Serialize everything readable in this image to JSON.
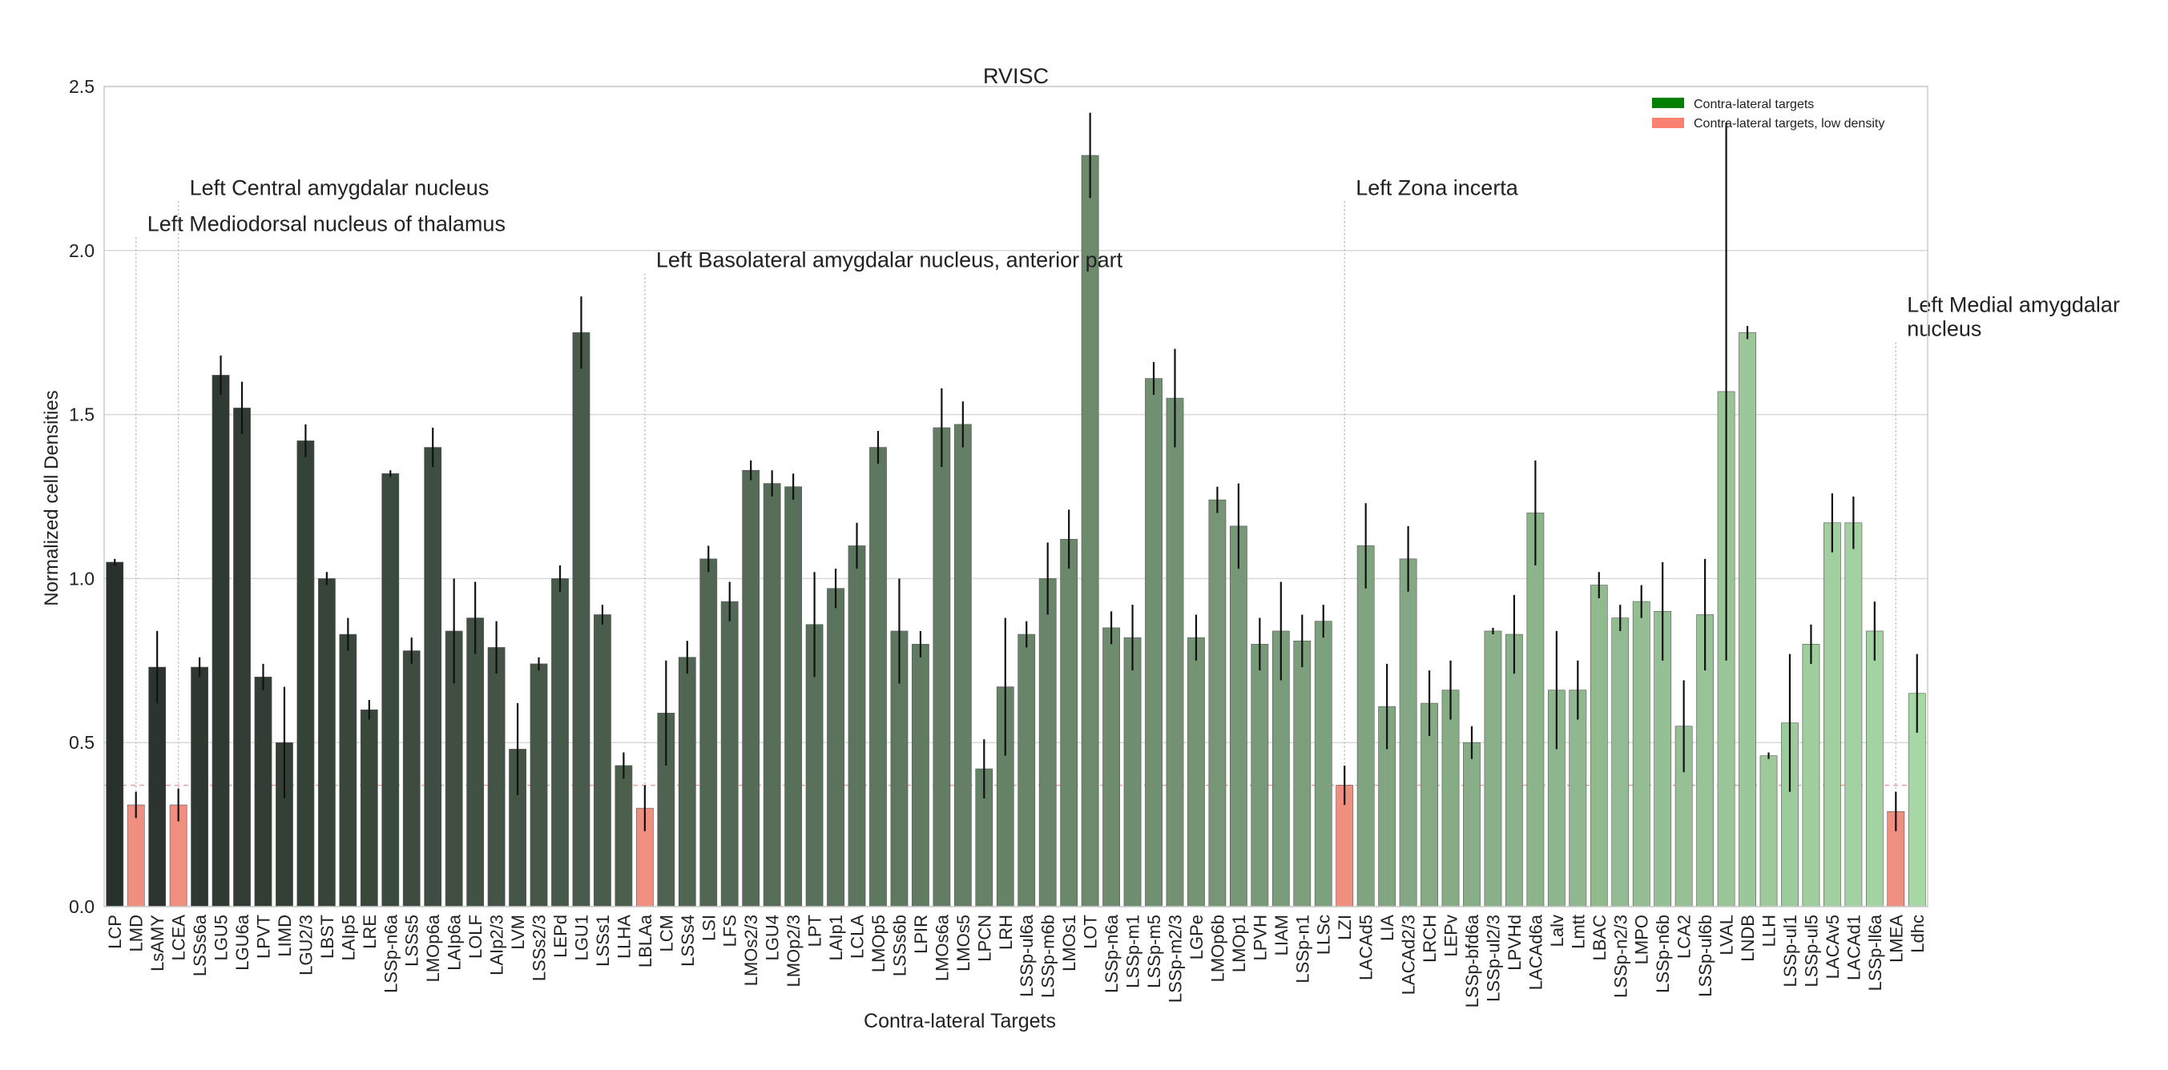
{
  "chart_data": {
    "type": "bar",
    "title": "RVISC",
    "xlabel": "Contra-lateral Targets",
    "ylabel": "Normalized cell Densities",
    "ylim": [
      0,
      2.5
    ],
    "yticks": [
      "0.0",
      "0.5",
      "1.0",
      "1.5",
      "2.0",
      "2.5"
    ],
    "grid": true,
    "threshold": 0.37,
    "legend": {
      "placement": "top-right",
      "entries": [
        {
          "label": "Contra-lateral targets",
          "color": "#008000"
        },
        {
          "label": "Contra-lateral targets, low density",
          "color": "#fa8072"
        }
      ]
    },
    "colors": {
      "gradient_start": "#28302b",
      "gradient_end": "#a7d7a5",
      "low_density": "#ef8f80",
      "error_bar": "#111111",
      "grid": "#d8d8d8",
      "threshold_line": "#e8a0a0"
    },
    "categories": [
      "LCP",
      "LMD",
      "LsAMY",
      "LCEA",
      "LSSs6a",
      "LGU5",
      "LGU6a",
      "LPVT",
      "LIMD",
      "LGU2/3",
      "LBST",
      "LAIp5",
      "LRE",
      "LSSp-n6a",
      "LSSs5",
      "LMOp6a",
      "LAIp6a",
      "LOLF",
      "LAIp2/3",
      "LVM",
      "LSSs2/3",
      "LEPd",
      "LGU1",
      "LSSs1",
      "LLHA",
      "LBLAa",
      "LCM",
      "LSSs4",
      "LSI",
      "LFS",
      "LMOs2/3",
      "LGU4",
      "LMOp2/3",
      "LPT",
      "LAIp1",
      "LCLA",
      "LMOp5",
      "LSSs6b",
      "LPIR",
      "LMOs6a",
      "LMOs5",
      "LPCN",
      "LRH",
      "LSSp-ul6a",
      "LSSp-m6b",
      "LMOs1",
      "LOT",
      "LSSp-n6a",
      "LSSp-m1",
      "LSSp-m5",
      "LSSp-m2/3",
      "LGPe",
      "LMOp6b",
      "LMOp1",
      "LPVH",
      "LIAM",
      "LSSp-n1",
      "LLSc",
      "LZI",
      "LACAd5",
      "LIA",
      "LACAd2/3",
      "LRCH",
      "LEPv",
      "LSSp-bfd6a",
      "LSSp-ul2/3",
      "LPVHd",
      "LACAd6a",
      "Lalv",
      "Lmtt",
      "LBAC",
      "LSSp-n2/3",
      "LMPO",
      "LSSp-n6b",
      "LCA2",
      "LSSp-ul6b",
      "LVAL",
      "LNDB",
      "LLH",
      "LSSp-ul1",
      "LSSp-ul5",
      "LACAv5",
      "LACAd1",
      "LSSp-ll6a",
      "LMEA",
      "Ldhc"
    ],
    "values": [
      1.05,
      0.31,
      0.73,
      0.31,
      0.73,
      1.62,
      1.52,
      0.7,
      0.5,
      1.42,
      1.0,
      0.83,
      0.6,
      1.32,
      0.78,
      1.4,
      0.84,
      0.88,
      0.79,
      0.48,
      0.74,
      1.0,
      1.75,
      0.89,
      0.43,
      0.3,
      0.59,
      0.76,
      1.06,
      0.93,
      1.33,
      1.29,
      1.28,
      0.86,
      0.97,
      1.1,
      1.4,
      0.84,
      0.8,
      1.46,
      1.47,
      0.42,
      0.67,
      0.83,
      1.0,
      1.12,
      2.29,
      0.85,
      0.82,
      1.61,
      1.55,
      0.82,
      1.24,
      1.16,
      0.8,
      0.84,
      0.81,
      0.87,
      0.37,
      1.1,
      0.61,
      1.06,
      0.62,
      0.66,
      0.5,
      0.84,
      0.83,
      1.2,
      0.66,
      0.66,
      0.98,
      0.88,
      0.93,
      0.9,
      0.55,
      0.89,
      1.57,
      1.75,
      0.46,
      0.56,
      0.8,
      1.17,
      1.17,
      0.84,
      0.29,
      0.65
    ],
    "errors": [
      0.01,
      0.04,
      0.11,
      0.05,
      0.03,
      0.06,
      0.08,
      0.04,
      0.17,
      0.05,
      0.02,
      0.05,
      0.03,
      0.01,
      0.04,
      0.06,
      0.16,
      0.11,
      0.08,
      0.14,
      0.02,
      0.04,
      0.11,
      0.03,
      0.04,
      0.07,
      0.16,
      0.05,
      0.04,
      0.06,
      0.03,
      0.04,
      0.04,
      0.16,
      0.06,
      0.07,
      0.05,
      0.16,
      0.04,
      0.12,
      0.07,
      0.09,
      0.21,
      0.04,
      0.11,
      0.09,
      0.13,
      0.05,
      0.1,
      0.05,
      0.15,
      0.07,
      0.04,
      0.13,
      0.08,
      0.15,
      0.08,
      0.05,
      0.06,
      0.13,
      0.13,
      0.1,
      0.1,
      0.09,
      0.05,
      0.01,
      0.12,
      0.16,
      0.18,
      0.09,
      0.04,
      0.04,
      0.05,
      0.15,
      0.14,
      0.17,
      0.82,
      0.02,
      0.01,
      0.21,
      0.06,
      0.09,
      0.08,
      0.09,
      0.06,
      0.12
    ],
    "low_density": [
      "LMD",
      "LCEA",
      "LBLAa",
      "LZI",
      "LMEA"
    ],
    "annotations": [
      {
        "target": "LMD",
        "text": "Left Mediodorsal nucleus of thalamus",
        "level": 2.04
      },
      {
        "target": "LCEA",
        "text": "Left Central amygdalar nucleus",
        "level": 2.15
      },
      {
        "target": "LBLAa",
        "text": "Left Basolateral amygdalar nucleus, anterior part",
        "level": 1.93
      },
      {
        "target": "LZI",
        "text": "Left Zona incerta",
        "level": 2.15
      },
      {
        "target": "LMEA",
        "text": "Left Medial amygdalar nucleus",
        "level": 1.72
      }
    ]
  }
}
